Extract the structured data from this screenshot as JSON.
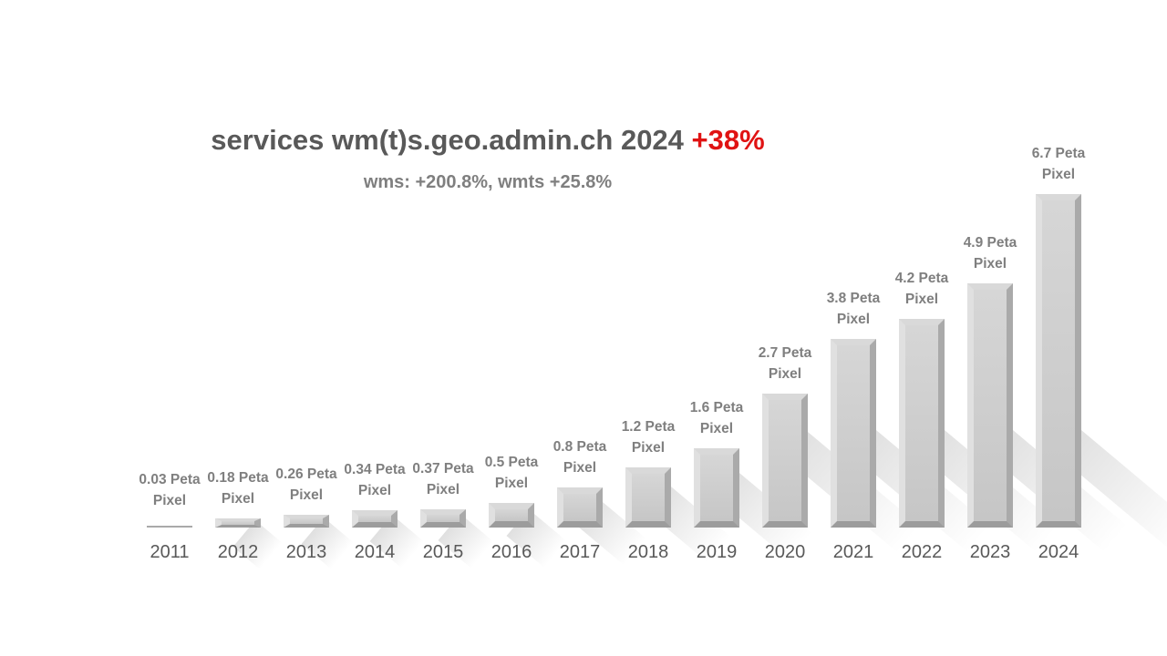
{
  "header": {
    "title_prefix": "services wm(t)s.geo.admin.ch 2024 ",
    "title_highlight": "+38%",
    "subtitle": "wms: +200.8%, wmts +25.8%"
  },
  "colors": {
    "title_gray": "#595959",
    "highlight_red": "#e01313",
    "value_label_gray": "#7f7f7f",
    "axis_label_gray": "#595959",
    "bar_face": "#cccccc",
    "bar_bevel_light": "#e0e0e0",
    "bar_bevel_dark": "#9c9c9c",
    "background": "#ffffff"
  },
  "chart_data": {
    "type": "bar",
    "title": "services wm(t)s.geo.admin.ch 2024 +38%",
    "subtitle": "wms: +200.8%, wmts +25.8%",
    "categories": [
      "2011",
      "2012",
      "2013",
      "2014",
      "2015",
      "2016",
      "2017",
      "2018",
      "2019",
      "2020",
      "2021",
      "2022",
      "2023",
      "2024"
    ],
    "values": [
      0.03,
      0.18,
      0.26,
      0.34,
      0.37,
      0.5,
      0.8,
      1.2,
      1.6,
      2.7,
      3.8,
      4.2,
      4.9,
      6.7
    ],
    "unit": "Peta Pixel",
    "bar_labels": [
      [
        "0.03 Peta",
        "Pixel"
      ],
      [
        "0.18 Peta",
        "Pixel"
      ],
      [
        "0.26 Peta",
        "Pixel"
      ],
      [
        "0.34 Peta",
        "Pixel"
      ],
      [
        "0.37 Peta",
        "Pixel"
      ],
      [
        "0.5 Peta",
        "Pixel"
      ],
      [
        "0.8 Peta",
        "Pixel"
      ],
      [
        "1.2 Peta",
        "Pixel"
      ],
      [
        "1.6 Peta",
        "Pixel"
      ],
      [
        "2.7 Peta",
        "Pixel"
      ],
      [
        "3.8 Peta",
        "Pixel"
      ],
      [
        "4.2 Peta",
        "Pixel"
      ],
      [
        "4.9 Peta",
        "Pixel"
      ],
      [
        "6.7 Peta",
        "Pixel"
      ]
    ],
    "growth_total": "+38%",
    "growth_wms": "+200.8%",
    "growth_wmts": "+25.8%",
    "xlabel": "",
    "ylabel": "",
    "ylim": [
      0,
      7
    ],
    "grid": false,
    "legend": false,
    "axes_visible": false,
    "bar_style": "3d-bevel-gray-with-diagonal-shadow"
  }
}
